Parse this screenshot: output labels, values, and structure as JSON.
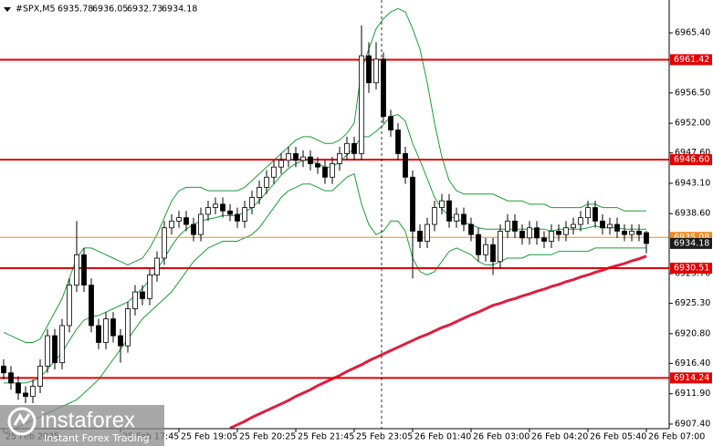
{
  "chart_data": {
    "type": "candlestick",
    "title": "#SPX,M5",
    "xlim": [
      -0.5,
      91.125
    ],
    "ylim": [
      6906.72,
      6970.27
    ],
    "xticks": [
      {
        "value": 0,
        "label": "25 Feb 2025"
      },
      {
        "value": 16,
        "label": "25 Feb 17:45"
      },
      {
        "value": 24,
        "label": "25 Feb 19:05"
      },
      {
        "value": 32,
        "label": "25 Feb 20:25"
      },
      {
        "value": 40,
        "label": "25 Feb 21:45"
      },
      {
        "value": 48,
        "label": "25 Feb 23:05"
      },
      {
        "value": 56,
        "label": "26 Feb 01:40"
      },
      {
        "value": 64,
        "label": "26 Feb 03:00"
      },
      {
        "value": 72,
        "label": "26 Feb 04:20"
      },
      {
        "value": 80,
        "label": "26 Feb 05:40"
      },
      {
        "value": 88,
        "label": "26 Feb 07:00"
      }
    ],
    "yticks": [
      {
        "value": 6965.4,
        "label": "6965.40"
      },
      {
        "value": 6956.5,
        "label": "6956.50"
      },
      {
        "value": 6952.0,
        "label": "6952.00"
      },
      {
        "value": 6947.6,
        "label": "6947.60"
      },
      {
        "value": 6943.1,
        "label": "6943.10"
      },
      {
        "value": 6938.6,
        "label": "6938.60"
      },
      {
        "value": 6929.7,
        "label": "6929.70"
      },
      {
        "value": 6925.3,
        "label": "6925.30"
      },
      {
        "value": 6920.8,
        "label": "6920.80"
      },
      {
        "value": 6916.4,
        "label": "6916.40"
      },
      {
        "value": 6911.9,
        "label": "6911.90"
      },
      {
        "value": 6907.4,
        "label": "6907.40"
      }
    ],
    "candle_color": "#000000",
    "open": [
      6916.0,
      6915.0,
      6913.5,
      6912.0,
      6911.5,
      6913.0,
      6916.0,
      6920.5,
      6916.5,
      6922.0,
      6928.0,
      6932.5,
      6928.0,
      6922.0,
      6919.5,
      6923.0,
      6920.5,
      6919.0,
      6924.5,
      6927.0,
      6926.0,
      6929.5,
      6932.0,
      6936.5,
      6937.5,
      6938.0,
      6937.0,
      6935.5,
      6938.5,
      6939.5,
      6940.0,
      6939.0,
      6938.5,
      6937.5,
      6939.5,
      6941.0,
      6942.5,
      6944.0,
      6945.5,
      6946.5,
      6947.5,
      6946.5,
      6947.0,
      6946.0,
      6945.5,
      6944.0,
      6946.0,
      6947.5,
      6949.0,
      6947.5,
      6962.0,
      6958.0,
      6961.5,
      6953.0,
      6951.0,
      6947.5,
      6944.0,
      6936.0,
      6934.5,
      6937.0,
      6939.5,
      6940.5,
      6937.5,
      6938.5,
      6937.0,
      6935.5,
      6932.5,
      6934.0,
      6931.5,
      6936.0,
      6937.5,
      6936.0,
      6935.0,
      6936.5,
      6935.0,
      6934.5,
      6936.0,
      6935.5,
      6936.5,
      6937.0,
      6938.0,
      6939.5,
      6937.5,
      6936.5,
      6937.0,
      6936.0,
      6935.5,
      6936.0,
      6935.78
    ],
    "high": [
      6917.0,
      6916.0,
      6914.5,
      6913.0,
      6914.0,
      6917.0,
      6921.5,
      6921.5,
      6923.0,
      6929.0,
      6937.5,
      6933.5,
      6929.0,
      6923.0,
      6924.0,
      6924.0,
      6921.5,
      6925.5,
      6928.0,
      6928.0,
      6930.5,
      6933.0,
      6937.5,
      6938.5,
      6939.0,
      6939.0,
      6938.0,
      6939.5,
      6940.5,
      6941.0,
      6941.0,
      6940.0,
      6939.5,
      6940.5,
      6942.0,
      6943.5,
      6945.0,
      6946.5,
      6947.5,
      6948.5,
      6948.5,
      6948.0,
      6948.0,
      6947.0,
      6946.5,
      6947.0,
      6948.5,
      6950.0,
      6950.0,
      6966.5,
      6964.0,
      6964.0,
      6962.5,
      6954.0,
      6952.0,
      6948.5,
      6945.0,
      6937.0,
      6938.0,
      6940.5,
      6941.5,
      6941.5,
      6939.5,
      6939.5,
      6938.0,
      6936.5,
      6935.0,
      6935.0,
      6937.0,
      6938.5,
      6938.5,
      6937.0,
      6937.5,
      6937.5,
      6936.0,
      6937.0,
      6937.0,
      6937.5,
      6938.0,
      6939.0,
      6940.5,
      6940.5,
      6938.5,
      6938.0,
      6938.0,
      6937.0,
      6937.0,
      6937.0,
      6936.05
    ],
    "low": [
      6914.0,
      6912.5,
      6911.0,
      6910.5,
      6910.5,
      6912.0,
      6915.0,
      6915.5,
      6915.5,
      6921.0,
      6927.0,
      6927.0,
      6921.0,
      6918.5,
      6918.5,
      6919.5,
      6916.5,
      6918.0,
      6923.5,
      6925.0,
      6925.0,
      6928.5,
      6931.0,
      6935.5,
      6936.5,
      6936.0,
      6934.5,
      6934.5,
      6937.5,
      6938.5,
      6938.0,
      6937.5,
      6936.5,
      6936.5,
      6938.5,
      6940.0,
      6941.5,
      6943.0,
      6944.5,
      6945.5,
      6945.5,
      6945.5,
      6945.0,
      6944.5,
      6943.0,
      6943.0,
      6945.0,
      6946.5,
      6946.5,
      6946.5,
      6956.5,
      6957.0,
      6952.0,
      6950.0,
      6946.5,
      6943.0,
      6929.0,
      6933.5,
      6933.5,
      6936.0,
      6938.5,
      6936.5,
      6936.5,
      6936.0,
      6934.5,
      6931.5,
      6931.5,
      6929.5,
      6930.5,
      6935.0,
      6935.0,
      6934.0,
      6934.0,
      6934.0,
      6933.5,
      6933.5,
      6934.5,
      6934.5,
      6935.5,
      6936.0,
      6937.0,
      6936.5,
      6935.5,
      6935.5,
      6935.0,
      6934.5,
      6934.5,
      6934.5,
      6932.73
    ],
    "close": [
      6915.0,
      6913.5,
      6912.0,
      6911.5,
      6913.0,
      6916.0,
      6920.5,
      6916.5,
      6922.0,
      6928.0,
      6932.5,
      6928.0,
      6922.0,
      6919.5,
      6923.0,
      6920.5,
      6919.0,
      6924.5,
      6927.0,
      6926.0,
      6929.5,
      6932.0,
      6936.5,
      6937.5,
      6938.0,
      6937.0,
      6935.5,
      6938.5,
      6939.5,
      6940.0,
      6939.0,
      6938.5,
      6937.5,
      6939.5,
      6941.0,
      6942.5,
      6944.0,
      6945.5,
      6946.5,
      6947.5,
      6946.5,
      6947.0,
      6946.0,
      6945.5,
      6944.0,
      6946.0,
      6947.5,
      6949.0,
      6947.5,
      6962.0,
      6958.0,
      6961.5,
      6953.0,
      6951.0,
      6947.5,
      6944.0,
      6936.0,
      6934.5,
      6937.0,
      6939.5,
      6940.5,
      6937.5,
      6938.5,
      6937.0,
      6935.5,
      6932.5,
      6934.0,
      6931.5,
      6936.0,
      6937.5,
      6936.0,
      6935.0,
      6936.5,
      6935.0,
      6934.5,
      6936.0,
      6935.5,
      6936.5,
      6937.0,
      6938.0,
      6939.5,
      6937.5,
      6936.5,
      6937.0,
      6936.0,
      6935.5,
      6936.0,
      6935.5,
      6934.18
    ],
    "series": [
      {
        "color": "#1f9a3a",
        "values": [
          6921,
          6920.5,
          6920,
          6919.5,
          6919.5,
          6920,
          6922,
          6924,
          6926,
          6929,
          6932,
          6933.5,
          6933.5,
          6933,
          6932.5,
          6932,
          6931.5,
          6931,
          6931.5,
          6932,
          6933.5,
          6935.5,
          6938,
          6940.5,
          6942,
          6942.5,
          6942.5,
          6942.5,
          6942,
          6942,
          6942,
          6942,
          6942,
          6942.5,
          6943.5,
          6944.5,
          6945.5,
          6946.5,
          6947.5,
          6948.5,
          6949.5,
          6950,
          6950,
          6949.5,
          6949,
          6949,
          6949.5,
          6950.5,
          6952,
          6960,
          6963,
          6966,
          6967.5,
          6968.5,
          6969,
          6968.5,
          6966,
          6963,
          6958,
          6952,
          6947,
          6943.5,
          6942,
          6941.5,
          6941.5,
          6941.5,
          6941.5,
          6941.5,
          6941,
          6940.5,
          6940.5,
          6940.5,
          6940,
          6940,
          6940,
          6939.5,
          6939.5,
          6939.5,
          6939.5,
          6939.5,
          6940,
          6940,
          6939.5,
          6939.5,
          6939.5,
          6939,
          6939,
          6939,
          6939
        ]
      },
      {
        "color": "#1f9a3a",
        "values": [
          6913.5,
          6913.5,
          6913.5,
          6913.5,
          6913.8,
          6914.3,
          6915.5,
          6916.8,
          6918,
          6919.8,
          6921.5,
          6922.8,
          6923.3,
          6923.5,
          6924,
          6924.5,
          6925,
          6925.5,
          6926.5,
          6927.5,
          6928.8,
          6930.3,
          6932,
          6933.8,
          6935.3,
          6936.3,
          6937,
          6937.5,
          6937.8,
          6938,
          6938.3,
          6938.3,
          6938.3,
          6938.8,
          6939.5,
          6940.5,
          6941.8,
          6943,
          6944.3,
          6945.3,
          6946,
          6946.5,
          6946.5,
          6946,
          6945.5,
          6945.5,
          6946.3,
          6947.3,
          6948.3,
          6950,
          6950,
          6950.8,
          6951.8,
          6953,
          6953.3,
          6952.3,
          6949,
          6946.5,
          6943.8,
          6941,
          6939.3,
          6938.3,
          6937.8,
          6937.3,
          6937,
          6936.5,
          6936.3,
          6936.3,
          6936.3,
          6936.3,
          6936.3,
          6936.3,
          6936.3,
          6936.3,
          6936.3,
          6936,
          6936.3,
          6936.3,
          6936.3,
          6936.3,
          6936.5,
          6936.8,
          6936.5,
          6936.5,
          6936.5,
          6936.3,
          6936.3,
          6936.3,
          6936.3
        ]
      },
      {
        "color": "#1f9a3a",
        "values": [
          6906,
          6906.5,
          6907,
          6907.5,
          6908,
          6908.5,
          6909,
          6909.5,
          6910,
          6910.5,
          6911,
          6912,
          6913,
          6914,
          6915.5,
          6917,
          6918.5,
          6920,
          6921.5,
          6923,
          6924,
          6925,
          6926,
          6927,
          6928.5,
          6930,
          6931.5,
          6932.5,
          6933.5,
          6934,
          6934.5,
          6934.5,
          6934.5,
          6935,
          6935.5,
          6936.5,
          6938,
          6939.5,
          6941,
          6942,
          6942.5,
          6943,
          6943,
          6942.5,
          6942,
          6942,
          6943,
          6944,
          6944.5,
          6940,
          6937,
          6935.5,
          6936,
          6937.5,
          6937.5,
          6936,
          6932,
          6930,
          6929.5,
          6930,
          6931.5,
          6933,
          6933.5,
          6933,
          6932.5,
          6931.5,
          6931,
          6931,
          6931.5,
          6932,
          6932,
          6932,
          6932.5,
          6932.5,
          6932.5,
          6932.5,
          6933,
          6933,
          6933,
          6933,
          6933,
          6933.5,
          6933.5,
          6933.5,
          6933.5,
          6933.5,
          6933.5,
          6933.5,
          6933.5
        ]
      },
      {
        "color": "#dc1e40",
        "values": [
          null,
          null,
          null,
          null,
          null,
          null,
          null,
          null,
          null,
          null,
          null,
          null,
          null,
          null,
          null,
          null,
          null,
          null,
          null,
          null,
          null,
          null,
          null,
          null,
          null,
          null,
          null,
          null,
          null,
          null,
          null,
          6906.8,
          6907.3,
          6907.8,
          6908.4,
          6908.9,
          6909.4,
          6909.9,
          6910.4,
          6910.9,
          6911.5,
          6912.0,
          6912.5,
          6913.1,
          6913.6,
          6914.1,
          6914.6,
          6915.2,
          6915.7,
          6916.2,
          6916.8,
          6917.3,
          6917.8,
          6918.3,
          6918.8,
          6919.3,
          6919.8,
          6920.3,
          6920.7,
          6921.2,
          6921.7,
          6922.1,
          6922.6,
          6923.1,
          6923.6,
          6924.0,
          6924.5,
          6925.0,
          6925.3,
          6925.7,
          6926.0,
          6926.4,
          6926.7,
          6927.1,
          6927.4,
          6927.8,
          6928.1,
          6928.5,
          6928.8,
          6929.2,
          6929.5,
          6929.9,
          6930.2,
          6930.6,
          6930.9,
          6931.2,
          6931.6,
          6931.9,
          6932.3
        ]
      }
    ],
    "levels": [
      {
        "value": 6961.42,
        "color": "#e00000"
      },
      {
        "value": 6946.6,
        "label": "6946.60",
        "color": "#e00000"
      },
      {
        "value": 6930.51,
        "color": "#e00000"
      },
      {
        "value": 6914.24,
        "color": "#e00000"
      }
    ],
    "bid_line": {
      "value": 6935.08,
      "color": "#f08a24"
    }
  },
  "watermark": {
    "name": "instaforex",
    "tagline": "Instant Forex Trading"
  }
}
